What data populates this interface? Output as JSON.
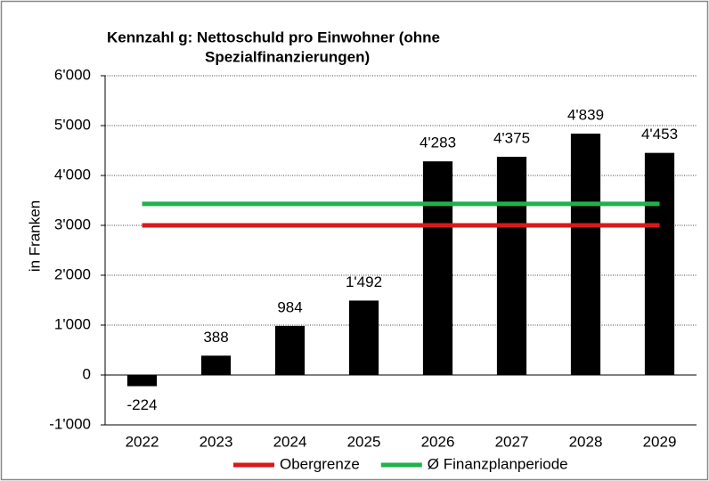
{
  "chart_data": {
    "type": "bar",
    "title": [
      "Kennzahl g: Nettoschuld pro Einwohner (ohne",
      "Spezialfinanzierungen)"
    ],
    "y_label": "in Franken",
    "categories": [
      "2022",
      "2023",
      "2024",
      "2025",
      "2026",
      "2027",
      "2028",
      "2029"
    ],
    "values": [
      -224,
      388,
      984,
      1492,
      4283,
      4375,
      4839,
      4453
    ],
    "value_labels": [
      "-224",
      "388",
      "984",
      "1'492",
      "4'283",
      "4'375",
      "4'839",
      "4'453"
    ],
    "color": "#000000",
    "series": [
      {
        "name": "Obergrenze",
        "color": "#d9191c",
        "values": [
          3000,
          3000,
          3000,
          3000,
          3000,
          3000,
          3000,
          3000
        ]
      },
      {
        "name": "Ø Finanzplanperiode",
        "color": "#1fb24a",
        "values": [
          3430,
          3430,
          3430,
          3430,
          3430,
          3430,
          3430,
          3430
        ]
      }
    ],
    "ylim": [
      -1000,
      6000
    ],
    "yticks": [
      {
        "value": -1000,
        "label": "-1'000"
      },
      0,
      {
        "value": 1000,
        "label": "1'000"
      },
      {
        "value": 2000,
        "label": "2'000"
      },
      {
        "value": 3000,
        "label": "3'000"
      },
      {
        "value": 4000,
        "label": "4'000"
      },
      {
        "value": 5000,
        "label": "5'000"
      },
      {
        "value": 6000,
        "label": "6'000"
      }
    ],
    "grid": true,
    "legend": "bottom"
  }
}
